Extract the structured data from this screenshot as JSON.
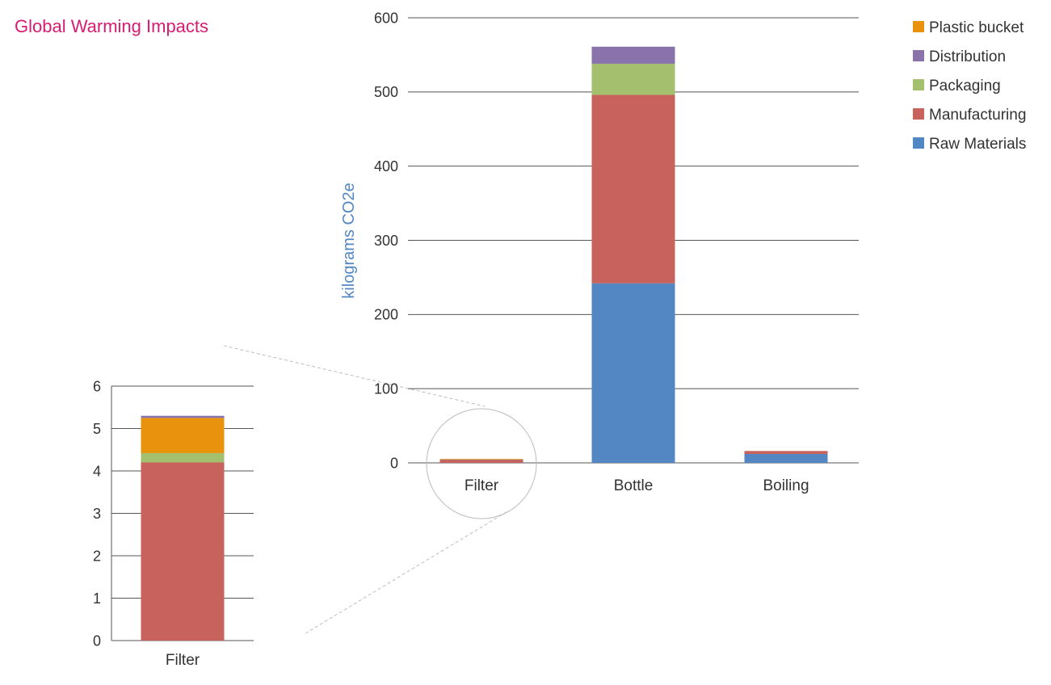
{
  "title": "Global Warming Impacts",
  "colors": {
    "raw_materials": "#5287c4",
    "manufacturing": "#c7625c",
    "packaging": "#a4bf6d",
    "distribution": "#8a73ab",
    "plastic_bucket": "#e8920e",
    "title": "#d81b73",
    "axis_label": "#5287c4"
  },
  "chart_data": [
    {
      "type": "bar",
      "stacked": true,
      "categories": [
        "Filter",
        "Bottle",
        "Boiling"
      ],
      "ylabel": "kilograms CO2e",
      "ylim": [
        0,
        600
      ],
      "yticks": [
        0,
        100,
        200,
        300,
        400,
        500,
        600
      ],
      "grid": true,
      "legend_position": "top-right",
      "legend": [
        "Plastic bucket",
        "Distribution",
        "Packaging",
        "Manufacturing",
        "Raw Materials"
      ],
      "series": [
        {
          "name": "Raw Materials",
          "color": "#5287c4",
          "values": [
            0,
            242,
            12
          ]
        },
        {
          "name": "Manufacturing",
          "color": "#c7625c",
          "values": [
            4.2,
            254,
            4
          ]
        },
        {
          "name": "Packaging",
          "color": "#a4bf6d",
          "values": [
            0.22,
            42,
            0
          ]
        },
        {
          "name": "Distribution",
          "color": "#8a73ab",
          "values": [
            0.05,
            23,
            0
          ]
        },
        {
          "name": "Plastic bucket",
          "color": "#e8920e",
          "values": [
            0.83,
            0,
            0
          ]
        }
      ]
    },
    {
      "type": "bar",
      "stacked": true,
      "categories": [
        "Filter"
      ],
      "ylim": [
        0,
        6
      ],
      "yticks": [
        0,
        1,
        2,
        3,
        4,
        5,
        6
      ],
      "grid": true,
      "series": [
        {
          "name": "Raw Materials",
          "color": "#5287c4",
          "values": [
            0
          ]
        },
        {
          "name": "Manufacturing",
          "color": "#c7625c",
          "values": [
            4.2
          ]
        },
        {
          "name": "Packaging",
          "color": "#a4bf6d",
          "values": [
            0.22
          ]
        },
        {
          "name": "Plastic bucket",
          "color": "#e8920e",
          "values": [
            0.83
          ]
        },
        {
          "name": "Distribution",
          "color": "#8a73ab",
          "values": [
            0.05
          ]
        }
      ]
    }
  ]
}
